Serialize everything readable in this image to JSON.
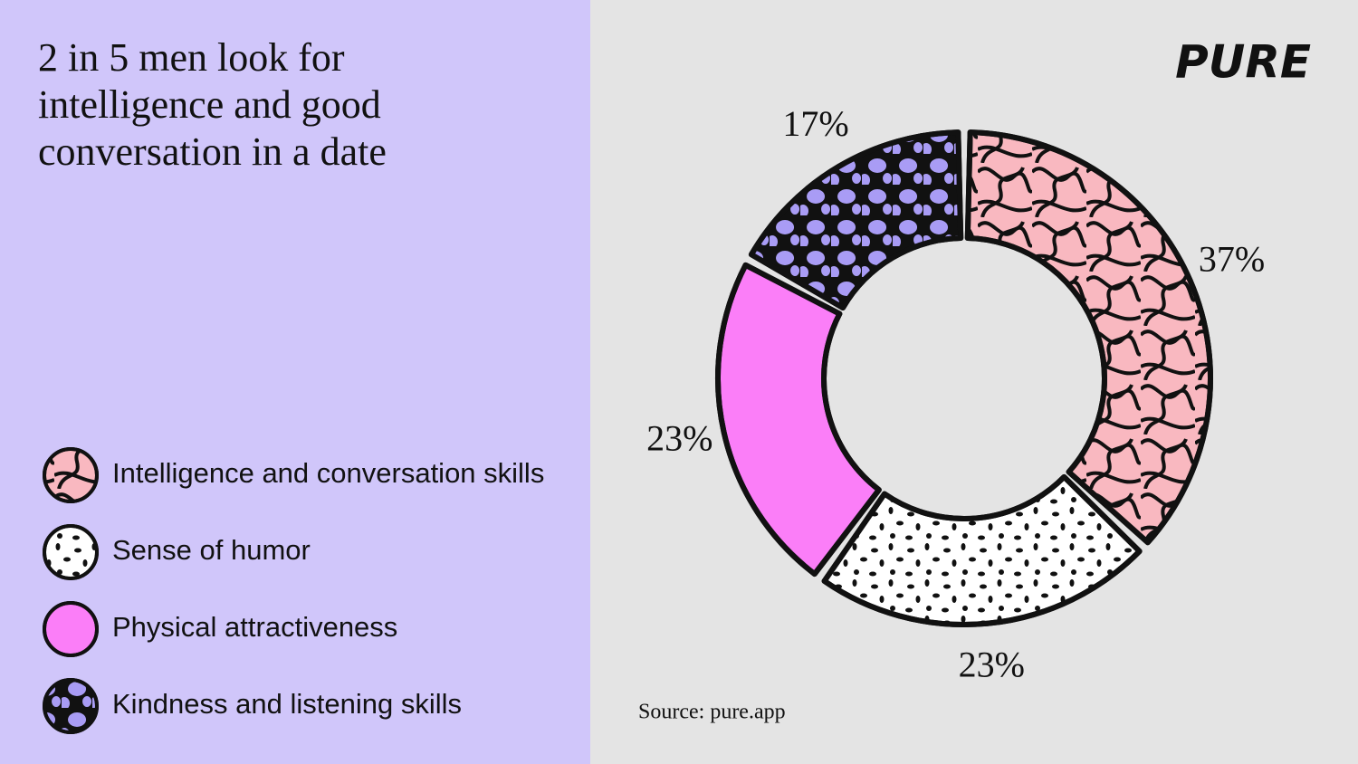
{
  "chart_data": {
    "type": "pie",
    "donut": true,
    "title": "2 in 5 men look for intelligence and good conversation in a date",
    "brand": "PURE",
    "source": "Source: pure.app",
    "categories": [
      "Intelligence and conversation skills",
      "Sense of humor",
      "Physical attractiveness",
      "Kindness and listening skills"
    ],
    "values": [
      37,
      23,
      23,
      17
    ],
    "value_labels": [
      "37%",
      "23%",
      "23%",
      "17%"
    ],
    "colors": [
      "#f9b8c0",
      "#ffffff",
      "#fb7ef8",
      "#a99cf5"
    ]
  }
}
